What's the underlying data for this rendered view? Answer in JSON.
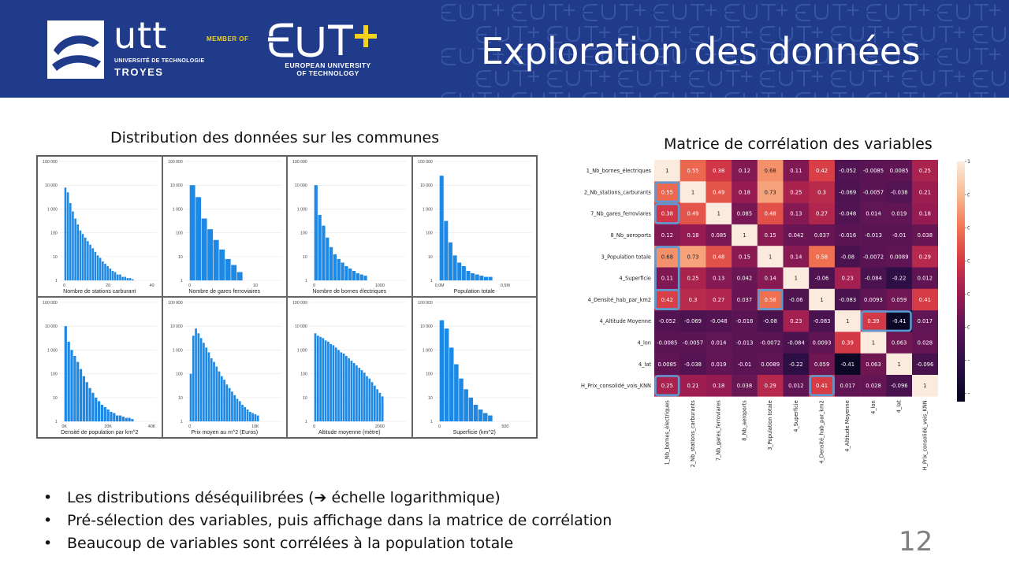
{
  "header": {
    "utt_name": "utt",
    "utt_sub1": "UNIVERSITÉ DE TECHNOLOGIE",
    "utt_sub2": "TROYES",
    "member_of": "MEMBER OF",
    "eut_line1": "EUROPEAN UNIVERSITY",
    "eut_line2": "OF TECHNOLOGY",
    "title": "Exploration des données",
    "brand_color": "#1f3b8a",
    "accent_color": "#f2d21a"
  },
  "distribution": {
    "title": "Distribution des données sur les communes",
    "panels": [
      {
        "xlabel": "Nombre de stations carburant",
        "xticks": [
          "0",
          "20",
          "40"
        ],
        "yticks": [
          "100 000",
          "10 000",
          "1 000",
          "100",
          "10",
          "1"
        ],
        "bars": [
          0.78,
          0.74,
          0.65,
          0.58,
          0.52,
          0.47,
          0.42,
          0.39,
          0.36,
          0.33,
          0.3,
          0.27,
          0.24,
          0.21,
          0.19,
          0.16,
          0.14,
          0.12,
          0.1,
          0.08,
          0.07,
          0.05,
          0.05,
          0.03,
          0.03,
          0.02,
          0.02,
          0.01
        ]
      },
      {
        "xlabel": "Nombre de gares ferroviaires",
        "xticks": [
          "0",
          "10"
        ],
        "yticks": [
          "100 000",
          "10 000",
          "1 000",
          "100",
          "10",
          "1"
        ],
        "bars": [
          0.8,
          0.7,
          0.52,
          0.43,
          0.34,
          0.26,
          0.18,
          0.13,
          0.07
        ]
      },
      {
        "xlabel": "Nombre de bornes électriques",
        "xticks": [
          "0",
          "1000"
        ],
        "yticks": [
          "100 000",
          "10 000",
          "1 000",
          "100",
          "10",
          "1"
        ],
        "bars": [
          0.8,
          0.55,
          0.46,
          0.36,
          0.28,
          0.22,
          0.18,
          0.15,
          0.12,
          0.1,
          0.08,
          0.06,
          0.05,
          0.04
        ]
      },
      {
        "xlabel": "Population totale",
        "xticks": [
          "0,0M",
          "0,5M"
        ],
        "yticks": [
          "100 000",
          "10 000",
          "1 000",
          "100",
          "10",
          "1"
        ],
        "bars": [
          0.88,
          0.5,
          0.32,
          0.21,
          0.15,
          0.12,
          0.08,
          0.06,
          0.05,
          0.04,
          0.03,
          0.03
        ]
      },
      {
        "xlabel": "Densité de population par km^2",
        "xticks": [
          "0K",
          "20K",
          "40K"
        ],
        "yticks": [
          "100 000",
          "10 000",
          "1 000",
          "100",
          "10",
          "1"
        ],
        "bars": [
          0.8,
          0.67,
          0.6,
          0.55,
          0.5,
          0.44,
          0.38,
          0.33,
          0.28,
          0.24,
          0.2,
          0.17,
          0.14,
          0.12,
          0.1,
          0.08,
          0.07,
          0.05,
          0.05,
          0.04,
          0.03,
          0.03,
          0.02
        ]
      },
      {
        "xlabel": "Prix moyen au m^2 (Euros)",
        "xticks": [
          "0",
          "10K"
        ],
        "yticks": [
          "100 000",
          "10 000",
          "1 000",
          "100",
          "10",
          "1"
        ],
        "bars": [
          0.4,
          0.72,
          0.78,
          0.74,
          0.7,
          0.66,
          0.62,
          0.58,
          0.53,
          0.5,
          0.46,
          0.42,
          0.38,
          0.35,
          0.31,
          0.28,
          0.25,
          0.22,
          0.19,
          0.17,
          0.14,
          0.12,
          0.1,
          0.08,
          0.07,
          0.06,
          0.05
        ]
      },
      {
        "xlabel": "Altitude moyenne (mètre)",
        "xticks": [
          "0",
          "2000"
        ],
        "yticks": [
          "100 000",
          "10 000",
          "1 000",
          "100",
          "10",
          "1"
        ],
        "bars": [
          0.74,
          0.72,
          0.71,
          0.7,
          0.68,
          0.67,
          0.65,
          0.64,
          0.62,
          0.6,
          0.58,
          0.57,
          0.55,
          0.53,
          0.51,
          0.49,
          0.47,
          0.45,
          0.43,
          0.41,
          0.38,
          0.36,
          0.33,
          0.3,
          0.27,
          0.24,
          0.21
        ]
      },
      {
        "xlabel": "Superficie (km^2)",
        "xticks": [
          "0",
          "500"
        ],
        "yticks": [
          "100 000",
          "10 000",
          "1 000",
          "100",
          "10",
          "1"
        ],
        "bars": [
          0.85,
          0.78,
          0.62,
          0.48,
          0.36,
          0.27,
          0.2,
          0.14,
          0.1,
          0.07,
          0.05
        ]
      }
    ]
  },
  "correlation": {
    "title": "Matrice de corrélation des variables",
    "variables": [
      "1_Nb_bornes_électriques",
      "2_Nb_stations_carburants",
      "7_Nb_gares_ferroviares",
      "8_Nb_aeroports",
      "3_Population totale",
      "4_Superficie",
      "4_Densité_hab_par_km2",
      "4_Altitude Moyenne",
      "4_lon",
      "4_lat",
      "H_Prix_consolidé_vois_KNN"
    ],
    "matrix": [
      [
        1,
        0.55,
        0.38,
        0.12,
        0.68,
        0.11,
        0.42,
        -0.052,
        -0.0085,
        0.0085,
        0.25
      ],
      [
        0.55,
        1,
        0.49,
        0.18,
        0.73,
        0.25,
        0.3,
        -0.069,
        -0.0057,
        -0.038,
        0.21
      ],
      [
        0.38,
        0.49,
        1,
        0.085,
        0.48,
        0.13,
        0.27,
        -0.048,
        0.014,
        0.019,
        0.18
      ],
      [
        0.12,
        0.18,
        0.085,
        1,
        0.15,
        0.042,
        0.037,
        -0.016,
        -0.013,
        -0.01,
        0.038
      ],
      [
        0.68,
        0.73,
        0.48,
        0.15,
        1,
        0.14,
        0.58,
        -0.08,
        -0.0072,
        0.0089,
        0.29
      ],
      [
        0.11,
        0.25,
        0.13,
        0.042,
        0.14,
        1,
        -0.06,
        0.23,
        -0.084,
        -0.22,
        0.012
      ],
      [
        0.42,
        0.3,
        0.27,
        0.037,
        0.58,
        -0.06,
        1,
        -0.083,
        0.0093,
        0.059,
        0.41
      ],
      [
        -0.052,
        -0.069,
        -0.048,
        -0.016,
        -0.08,
        0.23,
        -0.083,
        1,
        0.39,
        -0.41,
        0.017
      ],
      [
        -0.0085,
        -0.0057,
        0.014,
        -0.013,
        -0.0072,
        -0.084,
        0.0093,
        0.39,
        1,
        0.063,
        0.028
      ],
      [
        0.0085,
        -0.038,
        0.019,
        -0.01,
        0.0089,
        -0.22,
        0.059,
        -0.41,
        0.063,
        1,
        -0.096
      ],
      [
        0.25,
        0.21,
        0.18,
        0.038,
        0.29,
        0.012,
        0.41,
        0.017,
        0.028,
        -0.096,
        1
      ]
    ],
    "colorbar_ticks": [
      "1.0",
      "0.8",
      "0.6",
      "0.4",
      "0.2",
      "0.0",
      "−0.2",
      "−0.4"
    ],
    "highlights": [
      [
        1,
        0,
        1,
        1
      ],
      [
        2,
        0,
        1,
        1
      ],
      [
        4,
        0,
        1,
        3
      ],
      [
        6,
        0,
        1,
        1
      ],
      [
        6,
        4,
        1,
        1
      ],
      [
        7,
        8,
        2,
        1
      ],
      [
        10,
        0,
        1,
        1
      ],
      [
        10,
        6,
        1,
        1
      ]
    ],
    "highlight_color": "#5b9bd5"
  },
  "bullets": [
    "Les distributions déséquilibrées (➔ échelle logarithmique)",
    "Pré-sélection des variables, puis affichage dans la matrice de corrélation",
    "Beaucoup de variables sont corrélées à la population totale"
  ],
  "page_number": "12"
}
